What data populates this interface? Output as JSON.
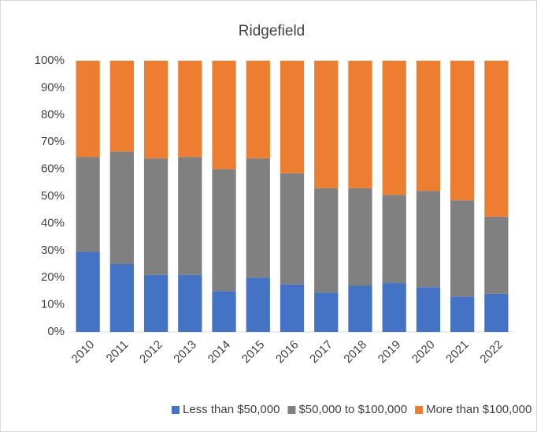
{
  "chart_data": {
    "type": "stacked_bar",
    "title": "Ridgefield",
    "categories": [
      "2010",
      "2011",
      "2012",
      "2013",
      "2014",
      "2015",
      "2016",
      "2017",
      "2018",
      "2019",
      "2020",
      "2021",
      "2022"
    ],
    "series": [
      {
        "name": "Less than $50,000",
        "color": "#4472c4",
        "values": [
          29.5,
          25,
          21,
          21,
          15,
          20,
          17.5,
          14.5,
          17,
          18,
          16.5,
          13,
          14
        ]
      },
      {
        "name": "$50,000 to $100,000",
        "color": "#808080",
        "values": [
          35,
          41.5,
          43,
          43.5,
          45,
          44,
          41,
          38.5,
          36,
          32.5,
          35.5,
          35.5,
          28.5
        ]
      },
      {
        "name": "More than $100,000",
        "color": "#ed7d31",
        "values": [
          35.5,
          33.5,
          36,
          35.5,
          40,
          36,
          41.5,
          47,
          47,
          49.5,
          48,
          51.5,
          57.5
        ]
      }
    ],
    "ylim": [
      0,
      100
    ],
    "yticks": [
      {
        "value": 0,
        "label": "0%"
      },
      {
        "value": 10,
        "label": "10%"
      },
      {
        "value": 20,
        "label": "20%"
      },
      {
        "value": 30,
        "label": "30%"
      },
      {
        "value": 40,
        "label": "40%"
      },
      {
        "value": 50,
        "label": "50%"
      },
      {
        "value": 60,
        "label": "60%"
      },
      {
        "value": 70,
        "label": "70%"
      },
      {
        "value": 80,
        "label": "80%"
      },
      {
        "value": 90,
        "label": "90%"
      },
      {
        "value": 100,
        "label": "100%"
      }
    ],
    "grid": false,
    "legend": "bottom"
  }
}
